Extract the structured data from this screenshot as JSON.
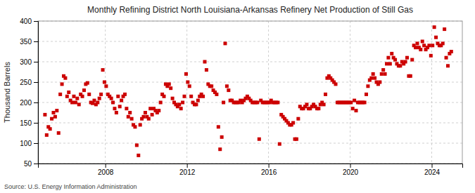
{
  "chart_data": {
    "type": "scatter",
    "title": "Monthly Refining District North Louisiana-Arkansas Refinery Net Production of Still Gas",
    "ylabel": "Thousand Barrels",
    "source": "Source: U.S. Energy Information Administration",
    "color": "#cc0000",
    "marker": "square",
    "grid": true,
    "xlim": [
      2004.7,
      2025.5
    ],
    "xticks": [
      2008,
      2012,
      2016,
      2020,
      2024
    ],
    "ylim": [
      50,
      400
    ],
    "yticks": [
      50,
      100,
      150,
      200,
      250,
      300,
      350,
      400
    ],
    "x": [
      2005.0416666666667,
      2005.125,
      2005.2083333333333,
      2005.2916666666667,
      2005.375,
      2005.4583333333333,
      2005.5416666666667,
      2005.625,
      2005.7083333333333,
      2005.7916666666667,
      2005.875,
      2005.9583333333333,
      2006.0416666666667,
      2006.125,
      2006.2083333333333,
      2006.2916666666667,
      2006.375,
      2006.4583333333333,
      2006.5416666666667,
      2006.625,
      2006.7083333333333,
      2006.7916666666667,
      2006.875,
      2006.9583333333333,
      2007.0416666666667,
      2007.125,
      2007.2083333333333,
      2007.2916666666667,
      2007.375,
      2007.4583333333333,
      2007.5416666666667,
      2007.625,
      2007.7083333333333,
      2007.7916666666667,
      2007.875,
      2007.9583333333333,
      2008.0416666666667,
      2008.125,
      2008.2083333333333,
      2008.2916666666667,
      2008.375,
      2008.4583333333333,
      2008.5416666666667,
      2008.625,
      2008.7083333333333,
      2008.7916666666667,
      2008.875,
      2008.9583333333333,
      2009.0416666666667,
      2009.125,
      2009.2083333333333,
      2009.2916666666667,
      2009.375,
      2009.4583333333333,
      2009.5416666666667,
      2009.625,
      2009.7083333333333,
      2009.7916666666667,
      2009.875,
      2009.9583333333333,
      2010.0416666666667,
      2010.125,
      2010.2083333333333,
      2010.2916666666667,
      2010.375,
      2010.4583333333333,
      2010.5416666666667,
      2010.625,
      2010.7083333333333,
      2010.7916666666667,
      2010.875,
      2010.9583333333333,
      2011.0416666666667,
      2011.125,
      2011.2083333333333,
      2011.2916666666667,
      2011.375,
      2011.4583333333333,
      2011.5416666666667,
      2011.625,
      2011.7083333333333,
      2011.7916666666667,
      2011.875,
      2011.9583333333333,
      2012.0416666666667,
      2012.125,
      2012.2083333333333,
      2012.2916666666667,
      2012.375,
      2012.4583333333333,
      2012.5416666666667,
      2012.625,
      2012.7083333333333,
      2012.7916666666667,
      2012.875,
      2012.9583333333333,
      2013.0416666666667,
      2013.125,
      2013.2083333333333,
      2013.2916666666667,
      2013.375,
      2013.4583333333333,
      2013.5416666666667,
      2013.625,
      2013.7083333333333,
      2013.7916666666667,
      2013.875,
      2013.9583333333333,
      2014.0416666666667,
      2014.125,
      2014.2083333333333,
      2014.2916666666667,
      2014.375,
      2014.4583333333333,
      2014.5416666666667,
      2014.625,
      2014.7083333333333,
      2014.7916666666667,
      2014.875,
      2014.9583333333333,
      2015.0416666666667,
      2015.125,
      2015.2083333333333,
      2015.2916666666667,
      2015.375,
      2015.4583333333333,
      2015.5416666666667,
      2015.625,
      2015.7083333333333,
      2015.7916666666667,
      2015.875,
      2015.9583333333333,
      2016.0416666666667,
      2016.125,
      2016.2083333333333,
      2016.2916666666667,
      2016.375,
      2016.4583333333333,
      2016.5416666666667,
      2016.625,
      2016.7083333333333,
      2016.7916666666667,
      2016.875,
      2016.9583333333333,
      2017.0416666666667,
      2017.125,
      2017.2083333333333,
      2017.2916666666667,
      2017.375,
      2017.4583333333333,
      2017.5416666666667,
      2017.625,
      2017.7083333333333,
      2017.7916666666667,
      2017.875,
      2017.9583333333333,
      2018.0416666666667,
      2018.125,
      2018.2083333333333,
      2018.2916666666667,
      2018.375,
      2018.4583333333333,
      2018.5416666666667,
      2018.625,
      2018.7083333333333,
      2018.7916666666667,
      2018.875,
      2018.9583333333333,
      2019.0416666666667,
      2019.125,
      2019.2083333333333,
      2019.2916666666667,
      2019.375,
      2019.4583333333333,
      2019.5416666666667,
      2019.625,
      2019.7083333333333,
      2019.7916666666667,
      2019.875,
      2019.9583333333333,
      2020.0416666666667,
      2020.125,
      2020.2083333333333,
      2020.2916666666667,
      2020.375,
      2020.4583333333333,
      2020.5416666666667,
      2020.625,
      2020.7083333333333,
      2020.7916666666667,
      2020.875,
      2020.9583333333333,
      2021.0416666666667,
      2021.125,
      2021.2083333333333,
      2021.2916666666667,
      2021.375,
      2021.4583333333333,
      2021.5416666666667,
      2021.625,
      2021.7083333333333,
      2021.7916666666667,
      2021.875,
      2021.9583333333333,
      2022.0416666666667,
      2022.125,
      2022.2083333333333,
      2022.2916666666667,
      2022.375,
      2022.4583333333333,
      2022.5416666666667,
      2022.625,
      2022.7083333333333,
      2022.7916666666667,
      2022.875,
      2022.9583333333333,
      2023.0416666666667,
      2023.125,
      2023.2083333333333,
      2023.2916666666667,
      2023.375,
      2023.4583333333333,
      2023.5416666666667,
      2023.625,
      2023.7083333333333,
      2023.7916666666667,
      2023.875,
      2023.9583333333333,
      2024.0416666666667,
      2024.125,
      2024.2083333333333,
      2024.2916666666667,
      2024.375,
      2024.4583333333333,
      2024.5416666666667,
      2024.625,
      2024.7083333333333,
      2024.7916666666667,
      2024.875,
      2024.9583333333333
    ],
    "values": [
      170,
      120,
      140,
      135,
      160,
      175,
      165,
      180,
      125,
      220,
      245,
      265,
      260,
      215,
      225,
      205,
      200,
      215,
      200,
      210,
      195,
      220,
      215,
      230,
      245,
      248,
      220,
      200,
      198,
      205,
      195,
      200,
      210,
      220,
      280,
      250,
      240,
      220,
      215,
      210,
      200,
      185,
      175,
      215,
      190,
      205,
      215,
      220,
      185,
      165,
      175,
      160,
      145,
      140,
      95,
      70,
      145,
      160,
      165,
      175,
      165,
      160,
      185,
      170,
      185,
      180,
      175,
      180,
      200,
      220,
      215,
      245,
      240,
      245,
      235,
      210,
      200,
      195,
      190,
      195,
      185,
      200,
      215,
      270,
      250,
      240,
      215,
      200,
      195,
      195,
      205,
      215,
      220,
      215,
      300,
      280,
      245,
      240,
      240,
      230,
      225,
      220,
      140,
      85,
      115,
      200,
      345,
      240,
      230,
      205,
      205,
      200,
      200,
      200,
      200,
      205,
      200,
      205,
      210,
      215,
      210,
      205,
      200,
      200,
      200,
      200,
      110,
      205,
      200,
      200,
      200,
      200,
      200,
      205,
      200,
      200,
      200,
      200,
      98,
      170,
      165,
      160,
      155,
      150,
      145,
      145,
      150,
      110,
      110,
      160,
      190,
      185,
      185,
      190,
      195,
      185,
      185,
      190,
      195,
      190,
      185,
      185,
      195,
      200,
      195,
      220,
      260,
      265,
      260,
      255,
      250,
      245,
      200,
      200,
      200,
      200,
      200,
      200,
      200,
      200,
      200,
      185,
      205,
      180,
      200,
      200,
      200,
      200,
      200,
      220,
      240,
      255,
      260,
      270,
      260,
      250,
      245,
      250,
      270,
      280,
      270,
      295,
      310,
      295,
      320,
      310,
      305,
      295,
      290,
      290,
      300,
      295,
      300,
      310,
      265,
      265,
      305,
      340,
      335,
      345,
      335,
      330,
      350,
      340,
      330,
      335,
      340,
      315,
      340,
      385,
      360,
      345,
      340,
      340,
      345,
      380,
      310,
      290,
      320,
      325
    ]
  }
}
